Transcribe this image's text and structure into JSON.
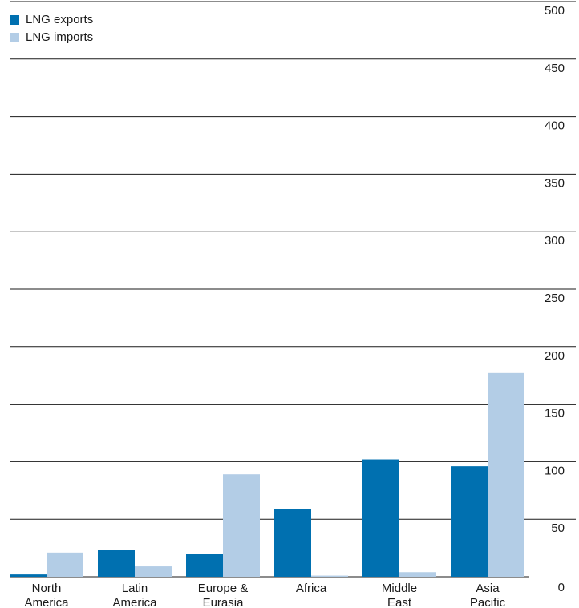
{
  "chart_data": {
    "type": "bar",
    "title": "",
    "xlabel": "",
    "ylabel": "",
    "categories": [
      [
        "North",
        "America"
      ],
      [
        "Latin",
        "America"
      ],
      [
        "Europe &",
        "Eurasia"
      ],
      [
        "Africa"
      ],
      [
        "Middle",
        "East"
      ],
      [
        "Asia",
        "Pacific"
      ]
    ],
    "series": [
      {
        "name": "LNG exports",
        "color": "#0070b0",
        "values": [
          2,
          23,
          20,
          59,
          102,
          96
        ]
      },
      {
        "name": "LNG imports",
        "color": "#b3cde6",
        "values": [
          21,
          9,
          89,
          1,
          4,
          177
        ]
      }
    ],
    "ylim": [
      0,
      500
    ],
    "yticks": [
      0,
      50,
      100,
      150,
      200,
      250,
      300,
      350,
      400,
      450,
      500
    ],
    "grid": true,
    "y_axis_side": "right",
    "legend_position": "top-left"
  }
}
